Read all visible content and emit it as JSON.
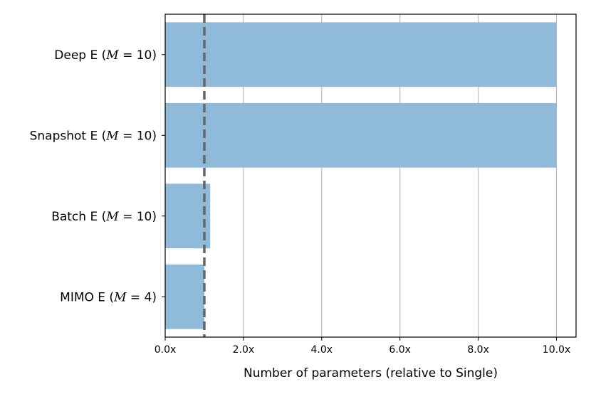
{
  "chart_data": {
    "type": "bar",
    "orientation": "horizontal",
    "categories": [
      "Deep E (M = 10)",
      "Snapshot E (M = 10)",
      "Batch E (M = 10)",
      "MIMO E (M = 4)"
    ],
    "category_parts": [
      {
        "prefix": "Deep E (",
        "var": "M",
        "rest": " = 10)"
      },
      {
        "prefix": "Snapshot E (",
        "var": "M",
        "rest": " = 10)"
      },
      {
        "prefix": "Batch E (",
        "var": "M",
        "rest": " = 10)"
      },
      {
        "prefix": "MIMO E (",
        "var": "M",
        "rest": " = 4)"
      }
    ],
    "values": [
      10.0,
      10.0,
      1.15,
      1.0
    ],
    "xlabel": "Number of parameters (relative to Single)",
    "ylabel": "",
    "xlim": [
      0,
      10.5
    ],
    "xticks": [
      0,
      2,
      4,
      6,
      8,
      10
    ],
    "xtick_labels": [
      "0.0x",
      "2.0x",
      "4.0x",
      "6.0x",
      "8.0x",
      "10.0x"
    ],
    "reference_line": {
      "x": 1.0,
      "style": "dashed",
      "color": "#666666"
    },
    "bar_color": "#8fbad9",
    "grid": {
      "x": true,
      "y": false,
      "color": "#b0b0b0"
    }
  }
}
